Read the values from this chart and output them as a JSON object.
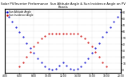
{
  "title": "Solar PV/Inverter Performance  Sun Altitude Angle & Sun Incidence Angle on PV Panels",
  "legend": [
    "Sun Altitude Angle",
    "Sun Incidence Angle"
  ],
  "blue_color": "#0000cc",
  "red_color": "#cc0000",
  "background_color": "#ffffff",
  "grid_color": "#aaaaaa",
  "blue_x": [
    4.0,
    4.5,
    5.0,
    5.5,
    6.0,
    6.5,
    7.0,
    7.5,
    8.0,
    8.5,
    9.0,
    9.5,
    10.0,
    10.5,
    11.0,
    11.5,
    12.0,
    12.5,
    13.0,
    13.5,
    14.0,
    14.5,
    15.0,
    15.5,
    16.0,
    16.5,
    17.0,
    17.5,
    18.0,
    18.5,
    19.0,
    19.5,
    20.0
  ],
  "blue_y": [
    90,
    83,
    75,
    67,
    59,
    51,
    42,
    34,
    26,
    18,
    11,
    5,
    1,
    0,
    2,
    6,
    12,
    6,
    2,
    0,
    1,
    5,
    11,
    18,
    26,
    34,
    42,
    51,
    59,
    67,
    75,
    83,
    90
  ],
  "red_x": [
    6.0,
    6.5,
    7.0,
    7.5,
    8.0,
    8.5,
    9.0,
    9.5,
    10.0,
    10.5,
    11.0,
    11.5,
    12.0,
    12.5,
    13.0,
    13.5,
    14.0,
    14.5,
    15.0,
    15.5,
    16.0,
    16.5,
    17.0,
    17.5,
    18.0
  ],
  "red_y": [
    5,
    12,
    20,
    28,
    36,
    43,
    49,
    53,
    56,
    57,
    57,
    57,
    57,
    57,
    57,
    57,
    56,
    53,
    49,
    43,
    36,
    28,
    20,
    12,
    5
  ],
  "xlim": [
    4.0,
    20.0
  ],
  "ylim": [
    -5,
    95
  ],
  "yticks": [
    0,
    10,
    20,
    30,
    40,
    50,
    60,
    70,
    80,
    90
  ],
  "xtick_step": 2,
  "markersize": 1.0,
  "title_fontsize": 2.8,
  "tick_fontsize": 2.2,
  "legend_fontsize": 2.2
}
